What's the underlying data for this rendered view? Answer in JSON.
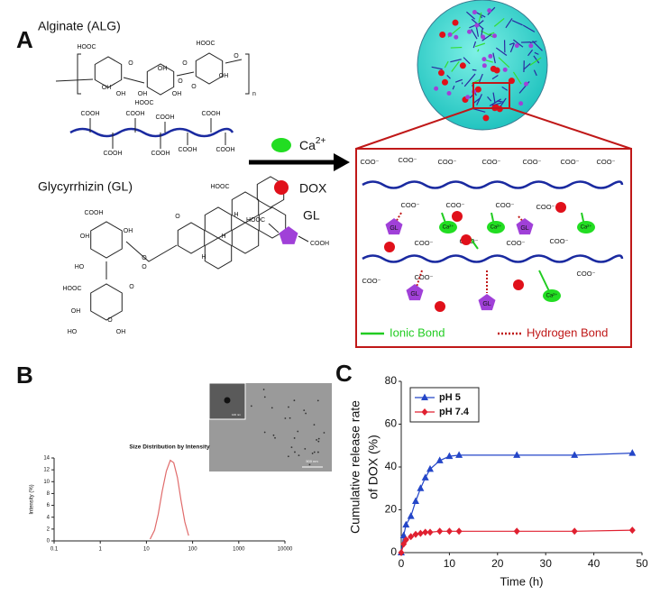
{
  "panel_labels": [
    "A",
    "B",
    "C"
  ],
  "panel_a": {
    "alginate": {
      "title": "Alginate (ALG)",
      "structure_labels": [
        "HOOC",
        "OH",
        "O",
        "OH",
        "OH",
        "O",
        "HOOC",
        "HOOC",
        "O",
        "OH",
        "OH",
        "O",
        "OH",
        "O",
        "n"
      ],
      "chain_labels": [
        "COOH",
        "COOH",
        "COOH",
        "COOH",
        "COOH",
        "COOH",
        "COOH",
        "COOH"
      ]
    },
    "glycyrrhizin": {
      "title": "Glycyrrhizin (GL)",
      "structure_labels": [
        "HOOC",
        "O",
        "H",
        "H",
        "H",
        "COOH",
        "O",
        "OH",
        "HO",
        "OH",
        "O",
        "HOOC",
        "O",
        "OH",
        "HO",
        "OH",
        "O"
      ]
    },
    "legend": [
      {
        "label": "Ca",
        "superscript": "2+"
      },
      {
        "label": "DOX"
      },
      {
        "label": "GL",
        "structure_labels": [
          "HOOC",
          "COOH"
        ]
      }
    ],
    "network": {
      "carboxylate_labels": [
        "COO⁻",
        "COO⁻",
        "COO⁻",
        "COO⁻",
        "COO⁻",
        "COO⁻",
        "COO⁻",
        "COO⁻",
        "COO⁻",
        "COO⁻",
        "COO⁻",
        "COO⁻",
        "COO⁻",
        "COO⁻",
        "COO⁻",
        "COO⁻",
        "COO⁻",
        "COO⁻"
      ],
      "gl_labels": [
        "GL",
        "GL",
        "GL",
        "GL"
      ],
      "ca_labels": [
        "Ca²⁺",
        "Ca²⁺",
        "Ca²⁺",
        "Ca²⁺"
      ],
      "ionic_bond": "Ionic Bond",
      "hydrogen_bond": "Hydrogen Bond"
    }
  },
  "panel_b_inset": {
    "scale_bar": "500 nm",
    "inset_scale_bar": "100 nm"
  },
  "chart_data": [
    {
      "type": "line",
      "title": "Size Distribution by Intensity",
      "y_label": "Intensity (%)",
      "log_x": true,
      "x": [
        12,
        15,
        18,
        22,
        27,
        33,
        39,
        47,
        56,
        68,
        82
      ],
      "values": [
        0.3,
        1.8,
        4.5,
        8.4,
        11.8,
        13.6,
        13.2,
        10.7,
        6.9,
        3.2,
        0.9
      ],
      "color": "#e06a6a",
      "xlim": [
        0.1,
        10000
      ],
      "xticks": [
        0.1,
        1,
        10,
        100,
        1000,
        10000
      ],
      "ylim": [
        0,
        14
      ],
      "yticks": [
        0,
        2,
        4,
        6,
        8,
        10,
        12,
        14
      ]
    },
    {
      "type": "line",
      "x_label": "Time (h)",
      "y_label": [
        "Cumulative release rate",
        "of DOX (%)"
      ],
      "x": [
        0,
        0.5,
        1,
        2,
        3,
        4,
        5,
        6,
        8,
        10,
        12,
        24,
        36,
        48
      ],
      "series": [
        {
          "name": "pH 5",
          "color": "#2446c8",
          "marker": "triangle",
          "values": [
            0,
            8,
            13,
            17,
            24,
            30,
            35,
            39,
            43,
            45,
            45.5,
            45.5,
            45.5,
            46.5
          ]
        },
        {
          "name": "pH 7.4",
          "color": "#e02030",
          "marker": "diamond",
          "values": [
            0,
            4,
            6,
            7.5,
            8.5,
            9,
            9.5,
            9.5,
            10,
            10,
            10,
            10,
            10,
            10.5
          ]
        }
      ],
      "xlim": [
        0,
        50
      ],
      "xticks": [
        0,
        10,
        20,
        30,
        40,
        50
      ],
      "ylim": [
        0,
        80
      ],
      "yticks": [
        0,
        20,
        40,
        60,
        80
      ],
      "legend": "upper-left"
    }
  ]
}
